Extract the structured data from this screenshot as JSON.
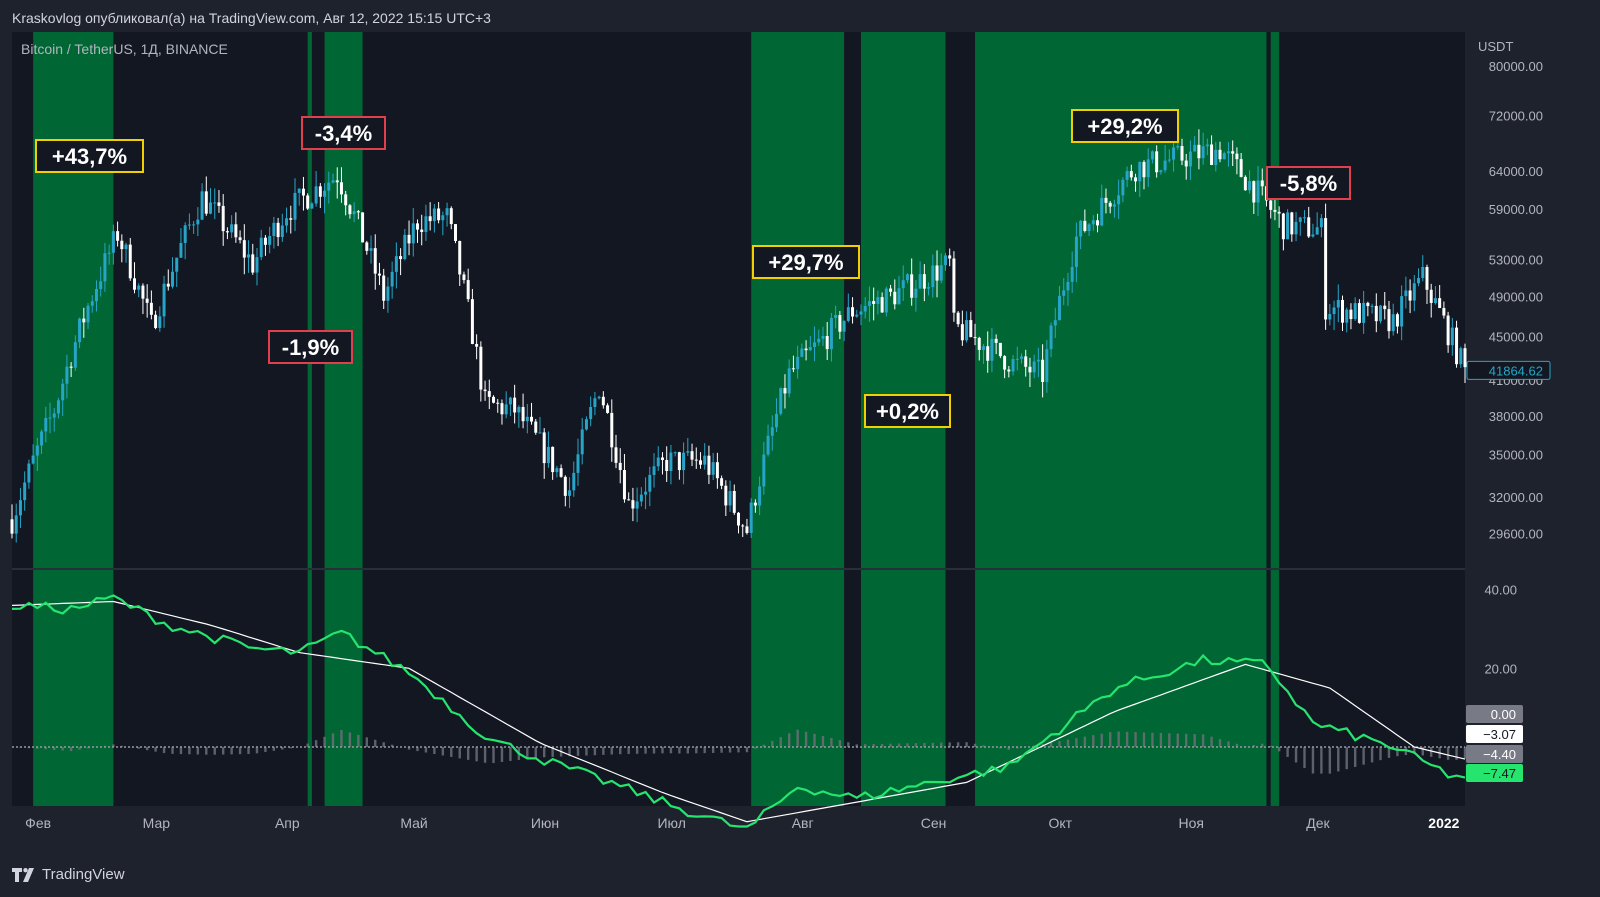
{
  "header": {
    "published_line": "Kraskovlog опубликовал(а) на TradingView.com, Авг 12, 2022 15:15 UTC+3",
    "symbol_line": "Bitcoin / TetherUS, 1Д, BINANCE"
  },
  "price_axis": {
    "currency": "USDT",
    "ticks": [
      "80000.00",
      "72000.00",
      "64000.00",
      "59000.00",
      "53000.00",
      "49000.00",
      "45000.00",
      "41000.00",
      "38000.00",
      "35000.00",
      "32000.00",
      "29600.00"
    ],
    "last_price": "41864.62"
  },
  "osc_axis": {
    "ticks": [
      "40.00",
      "20.00"
    ],
    "badges": [
      {
        "text": "0.00",
        "bg": "#787b86",
        "fg": "#ffffff"
      },
      {
        "text": "−3.07",
        "bg": "#ffffff",
        "fg": "#131722"
      },
      {
        "text": "−4.40",
        "bg": "#787b86",
        "fg": "#ffffff"
      },
      {
        "text": "−7.47",
        "bg": "#26e56f",
        "fg": "#131722"
      }
    ]
  },
  "time_axis": [
    "Фев",
    "Мар",
    "Апр",
    "Май",
    "Июн",
    "Июл",
    "Авг",
    "Сен",
    "Окт",
    "Ноя",
    "Дек",
    "2022"
  ],
  "annotations": [
    {
      "text": "+43,7%",
      "kind": "gain"
    },
    {
      "text": "-3,4%",
      "kind": "loss"
    },
    {
      "text": "-1,9%",
      "kind": "loss"
    },
    {
      "text": "+29,7%",
      "kind": "gain"
    },
    {
      "text": "+0,2%",
      "kind": "gain"
    },
    {
      "text": "+29,2%",
      "kind": "gain"
    },
    {
      "text": "-5,8%",
      "kind": "loss"
    }
  ],
  "colors": {
    "background": "#1e222d",
    "pane": "#131722",
    "highlight": "#006633",
    "candle_up": "#26a5c8",
    "candle_down": "#ffffff",
    "osc_fast": "#26e56f",
    "osc_slow": "#ffffff",
    "gain_border": "#f0d000",
    "loss_border": "#e0404e"
  },
  "chart_data": {
    "type": "candlestick",
    "symbol": "Bitcoin / TetherUS",
    "interval": "1Д",
    "exchange": "BINANCE",
    "y_ticks": [
      80000,
      72000,
      64000,
      59000,
      53000,
      49000,
      45000,
      41000,
      38000,
      35000,
      32000,
      29600
    ],
    "y_log_range": [
      27500,
      86000
    ],
    "last_price": 41864.62,
    "price_path": {
      "x": [
        "2021-01-27",
        "2021-02-06",
        "2021-02-14",
        "2021-02-21",
        "2021-03-01",
        "2021-03-13",
        "2021-03-25",
        "2021-04-02",
        "2021-04-14",
        "2021-04-25",
        "2021-05-03",
        "2021-05-10",
        "2021-05-19",
        "2021-05-26",
        "2021-06-08",
        "2021-06-15",
        "2021-06-22",
        "2021-07-01",
        "2021-07-10",
        "2021-07-20",
        "2021-07-30",
        "2021-08-14",
        "2021-08-23",
        "2021-09-06",
        "2021-09-07",
        "2021-09-21",
        "2021-09-28",
        "2021-10-06",
        "2021-10-20",
        "2021-11-09",
        "2021-11-24",
        "2021-12-03",
        "2021-12-04",
        "2021-12-20",
        "2021-12-27",
        "2022-01-06"
      ],
      "y": [
        30500,
        38500,
        48000,
        56000,
        46000,
        60500,
        52500,
        58800,
        63500,
        49000,
        57500,
        58000,
        39000,
        38500,
        32500,
        40500,
        31500,
        34500,
        34500,
        29800,
        41500,
        47500,
        49000,
        52500,
        46000,
        42500,
        41500,
        55500,
        64500,
        67000,
        57000,
        56500,
        48000,
        46500,
        51000,
        41800
      ]
    },
    "highlight_bands": [
      {
        "from": "2021-02-01",
        "to": "2021-02-20"
      },
      {
        "from": "2021-04-07",
        "to": "2021-04-08"
      },
      {
        "from": "2021-04-11",
        "to": "2021-04-20"
      },
      {
        "from": "2021-07-21",
        "to": "2021-08-12"
      },
      {
        "from": "2021-08-16",
        "to": "2021-09-05"
      },
      {
        "from": "2021-09-12",
        "to": "2021-11-20"
      },
      {
        "from": "2021-11-21",
        "to": "2021-11-23"
      }
    ],
    "oscillator": {
      "range": [
        -15,
        45
      ],
      "fast": {
        "x": [
          "2021-01-27",
          "2021-02-10",
          "2021-02-20",
          "2021-03-05",
          "2021-03-25",
          "2021-04-05",
          "2021-04-15",
          "2021-05-01",
          "2021-05-20",
          "2021-06-01",
          "2021-06-20",
          "2021-07-05",
          "2021-07-20",
          "2021-08-01",
          "2021-08-15",
          "2021-09-06",
          "2021-09-20",
          "2021-10-15",
          "2021-11-05",
          "2021-11-20",
          "2021-12-01",
          "2021-12-20",
          "2022-01-03",
          "2022-01-06"
        ],
        "y": [
          36,
          35,
          38,
          31,
          25,
          24,
          29,
          19,
          2,
          -3,
          -10,
          -16,
          -21,
          -10,
          -13,
          -8,
          -5,
          15,
          22,
          21,
          6,
          0,
          -7.5,
          -7.47
        ]
      },
      "slow": {
        "x": [
          "2021-01-27",
          "2021-02-20",
          "2021-03-15",
          "2021-04-05",
          "2021-05-01",
          "2021-06-01",
          "2021-07-01",
          "2021-07-20",
          "2021-08-15",
          "2021-09-10",
          "2021-10-15",
          "2021-11-15",
          "2021-12-05",
          "2021-12-25",
          "2022-01-06"
        ],
        "y": [
          36,
          37,
          31,
          24,
          20,
          1,
          -12,
          -19,
          -14,
          -9,
          9,
          21,
          15,
          0,
          -3.07
        ]
      }
    }
  }
}
